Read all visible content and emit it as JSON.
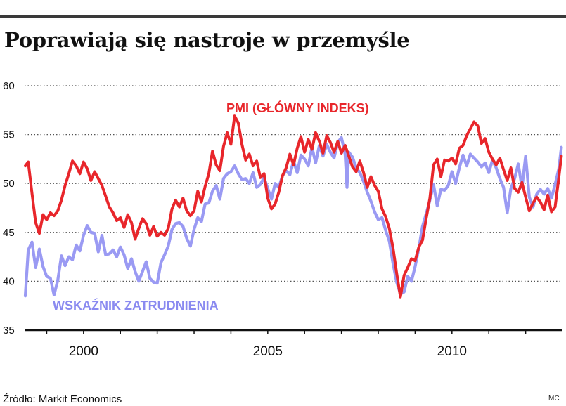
{
  "title": "Poprawiają się nastroje w przemyśle",
  "source": "Źródło: Markit Economics",
  "credit": "MC",
  "chart_data": {
    "type": "line",
    "title": "Poprawiają się nastroje w przemyśle",
    "xlabel": "",
    "ylabel": "",
    "xlim": [
      1998.4,
      2013.0
    ],
    "ylim": [
      35,
      60
    ],
    "yticks": [
      35,
      40,
      45,
      50,
      55,
      60
    ],
    "ytick_labels": [
      "35",
      "40",
      "45",
      "50",
      "55",
      "60"
    ],
    "xtick_years": [
      1999,
      2000,
      2001,
      2002,
      2003,
      2004,
      2005,
      2006,
      2007,
      2008,
      2009,
      2010,
      2011,
      2012
    ],
    "xtick_labels": [
      {
        "x": 2000,
        "label": "2000"
      },
      {
        "x": 2005,
        "label": "2005"
      },
      {
        "x": 2010,
        "label": "2010"
      }
    ],
    "grid": "horizontal-dotted",
    "series": [
      {
        "name": "PMI (GŁÓWNY INDEKS)",
        "color": "#e8262b",
        "points": [
          [
            1998.42,
            51.8
          ],
          [
            1998.5,
            52.2
          ],
          [
            1998.6,
            49.0
          ],
          [
            1998.7,
            46.0
          ],
          [
            1998.8,
            44.9
          ],
          [
            1998.9,
            46.8
          ],
          [
            1999.0,
            46.3
          ],
          [
            1999.1,
            47.0
          ],
          [
            1999.2,
            46.7
          ],
          [
            1999.3,
            47.2
          ],
          [
            1999.4,
            48.3
          ],
          [
            1999.5,
            49.8
          ],
          [
            1999.6,
            51.0
          ],
          [
            1999.7,
            52.3
          ],
          [
            1999.8,
            51.8
          ],
          [
            1999.9,
            51.0
          ],
          [
            2000.0,
            52.2
          ],
          [
            2000.1,
            51.5
          ],
          [
            2000.2,
            50.3
          ],
          [
            2000.3,
            51.2
          ],
          [
            2000.4,
            50.5
          ],
          [
            2000.5,
            49.8
          ],
          [
            2000.6,
            48.7
          ],
          [
            2000.7,
            47.6
          ],
          [
            2000.8,
            47.0
          ],
          [
            2000.9,
            46.2
          ],
          [
            2001.0,
            46.5
          ],
          [
            2001.1,
            45.5
          ],
          [
            2001.2,
            46.8
          ],
          [
            2001.3,
            46.0
          ],
          [
            2001.4,
            44.3
          ],
          [
            2001.5,
            45.4
          ],
          [
            2001.6,
            46.4
          ],
          [
            2001.7,
            45.9
          ],
          [
            2001.8,
            44.7
          ],
          [
            2001.9,
            45.6
          ],
          [
            2002.0,
            44.6
          ],
          [
            2002.1,
            45.0
          ],
          [
            2002.2,
            44.7
          ],
          [
            2002.3,
            45.4
          ],
          [
            2002.4,
            47.4
          ],
          [
            2002.5,
            48.3
          ],
          [
            2002.6,
            47.6
          ],
          [
            2002.7,
            48.5
          ],
          [
            2002.8,
            47.2
          ],
          [
            2002.9,
            46.7
          ],
          [
            2003.0,
            47.2
          ],
          [
            2003.1,
            49.2
          ],
          [
            2003.2,
            48.1
          ],
          [
            2003.3,
            49.7
          ],
          [
            2003.4,
            51.0
          ],
          [
            2003.5,
            53.3
          ],
          [
            2003.6,
            51.9
          ],
          [
            2003.7,
            51.3
          ],
          [
            2003.8,
            53.8
          ],
          [
            2003.9,
            55.2
          ],
          [
            2004.0,
            54.0
          ],
          [
            2004.1,
            56.9
          ],
          [
            2004.2,
            56.2
          ],
          [
            2004.3,
            54.0
          ],
          [
            2004.4,
            52.4
          ],
          [
            2004.5,
            53.0
          ],
          [
            2004.6,
            51.8
          ],
          [
            2004.7,
            52.3
          ],
          [
            2004.8,
            50.6
          ],
          [
            2004.9,
            51.0
          ],
          [
            2005.0,
            48.5
          ],
          [
            2005.1,
            47.4
          ],
          [
            2005.2,
            47.9
          ],
          [
            2005.3,
            49.1
          ],
          [
            2005.4,
            50.8
          ],
          [
            2005.5,
            51.6
          ],
          [
            2005.6,
            53.0
          ],
          [
            2005.7,
            51.9
          ],
          [
            2005.8,
            53.6
          ],
          [
            2005.9,
            54.8
          ],
          [
            2006.0,
            53.2
          ],
          [
            2006.1,
            54.5
          ],
          [
            2006.2,
            53.5
          ],
          [
            2006.3,
            55.2
          ],
          [
            2006.4,
            54.3
          ],
          [
            2006.5,
            53.1
          ],
          [
            2006.6,
            54.9
          ],
          [
            2006.7,
            54.2
          ],
          [
            2006.8,
            53.2
          ],
          [
            2006.9,
            54.3
          ],
          [
            2007.0,
            53.1
          ],
          [
            2007.1,
            53.9
          ],
          [
            2007.2,
            52.8
          ],
          [
            2007.3,
            51.7
          ],
          [
            2007.4,
            51.2
          ],
          [
            2007.5,
            52.3
          ],
          [
            2007.6,
            51.1
          ],
          [
            2007.7,
            49.6
          ],
          [
            2007.8,
            50.7
          ],
          [
            2007.9,
            49.8
          ],
          [
            2008.0,
            49.2
          ],
          [
            2008.1,
            47.4
          ],
          [
            2008.2,
            46.6
          ],
          [
            2008.3,
            45.4
          ],
          [
            2008.4,
            43.4
          ],
          [
            2008.5,
            40.8
          ],
          [
            2008.6,
            38.4
          ],
          [
            2008.7,
            40.6
          ],
          [
            2008.8,
            41.4
          ],
          [
            2008.9,
            42.3
          ],
          [
            2009.0,
            42.1
          ],
          [
            2009.1,
            43.5
          ],
          [
            2009.2,
            44.2
          ],
          [
            2009.3,
            46.4
          ],
          [
            2009.4,
            48.5
          ],
          [
            2009.5,
            51.9
          ],
          [
            2009.6,
            52.5
          ],
          [
            2009.7,
            50.7
          ],
          [
            2009.8,
            52.4
          ],
          [
            2009.9,
            52.3
          ],
          [
            2010.0,
            52.6
          ],
          [
            2010.1,
            52.0
          ],
          [
            2010.2,
            53.6
          ],
          [
            2010.3,
            53.9
          ],
          [
            2010.4,
            54.9
          ],
          [
            2010.5,
            55.6
          ],
          [
            2010.6,
            56.3
          ],
          [
            2010.7,
            55.9
          ],
          [
            2010.8,
            54.1
          ],
          [
            2010.9,
            54.6
          ],
          [
            2011.0,
            53.2
          ],
          [
            2011.1,
            52.5
          ],
          [
            2011.2,
            51.9
          ],
          [
            2011.3,
            52.6
          ],
          [
            2011.4,
            51.4
          ],
          [
            2011.5,
            50.3
          ],
          [
            2011.6,
            51.6
          ],
          [
            2011.7,
            49.5
          ],
          [
            2011.8,
            49.1
          ],
          [
            2011.9,
            50.1
          ],
          [
            2012.0,
            48.6
          ],
          [
            2012.1,
            47.2
          ],
          [
            2012.2,
            48.0
          ],
          [
            2012.3,
            48.6
          ],
          [
            2012.4,
            48.1
          ],
          [
            2012.5,
            47.3
          ],
          [
            2012.6,
            48.8
          ],
          [
            2012.7,
            47.1
          ],
          [
            2012.8,
            47.6
          ],
          [
            2012.9,
            50.6
          ],
          [
            2012.97,
            52.8
          ]
        ]
      },
      {
        "name": "WSKAŹNIK ZATRUDNIENIA",
        "color": "#9a9af3",
        "points": [
          [
            1998.42,
            38.5
          ],
          [
            1998.5,
            43.2
          ],
          [
            1998.6,
            44.0
          ],
          [
            1998.7,
            41.4
          ],
          [
            1998.8,
            43.3
          ],
          [
            1998.9,
            41.5
          ],
          [
            1999.0,
            40.5
          ],
          [
            1999.1,
            40.3
          ],
          [
            1999.2,
            38.6
          ],
          [
            1999.3,
            40.1
          ],
          [
            1999.4,
            42.6
          ],
          [
            1999.5,
            41.6
          ],
          [
            1999.6,
            42.5
          ],
          [
            1999.7,
            42.2
          ],
          [
            1999.8,
            43.7
          ],
          [
            1999.9,
            43.1
          ],
          [
            2000.0,
            44.7
          ],
          [
            2000.1,
            45.7
          ],
          [
            2000.2,
            45.0
          ],
          [
            2000.3,
            44.9
          ],
          [
            2000.4,
            43.0
          ],
          [
            2000.5,
            44.7
          ],
          [
            2000.6,
            42.7
          ],
          [
            2000.7,
            42.8
          ],
          [
            2000.8,
            43.2
          ],
          [
            2000.9,
            42.5
          ],
          [
            2001.0,
            43.5
          ],
          [
            2001.1,
            42.7
          ],
          [
            2001.2,
            41.3
          ],
          [
            2001.3,
            42.3
          ],
          [
            2001.4,
            41.0
          ],
          [
            2001.5,
            40.0
          ],
          [
            2001.6,
            41.0
          ],
          [
            2001.7,
            42.0
          ],
          [
            2001.8,
            40.3
          ],
          [
            2001.9,
            39.9
          ],
          [
            2002.0,
            39.8
          ],
          [
            2002.1,
            41.9
          ],
          [
            2002.2,
            42.7
          ],
          [
            2002.3,
            43.6
          ],
          [
            2002.4,
            45.3
          ],
          [
            2002.5,
            45.9
          ],
          [
            2002.6,
            46.0
          ],
          [
            2002.7,
            45.6
          ],
          [
            2002.8,
            44.4
          ],
          [
            2002.9,
            43.6
          ],
          [
            2003.0,
            45.3
          ],
          [
            2003.1,
            46.5
          ],
          [
            2003.2,
            46.1
          ],
          [
            2003.3,
            47.9
          ],
          [
            2003.4,
            48.0
          ],
          [
            2003.5,
            49.2
          ],
          [
            2003.6,
            49.8
          ],
          [
            2003.7,
            48.4
          ],
          [
            2003.8,
            50.5
          ],
          [
            2003.9,
            51.0
          ],
          [
            2004.0,
            51.2
          ],
          [
            2004.1,
            51.8
          ],
          [
            2004.2,
            51.0
          ],
          [
            2004.3,
            50.4
          ],
          [
            2004.4,
            50.5
          ],
          [
            2004.5,
            50.0
          ],
          [
            2004.6,
            51.1
          ],
          [
            2004.7,
            49.6
          ],
          [
            2004.8,
            49.9
          ],
          [
            2004.9,
            50.6
          ],
          [
            2005.0,
            49.5
          ],
          [
            2005.1,
            48.4
          ],
          [
            2005.2,
            50.0
          ],
          [
            2005.3,
            49.6
          ],
          [
            2005.4,
            50.8
          ],
          [
            2005.5,
            51.3
          ],
          [
            2005.6,
            50.9
          ],
          [
            2005.7,
            52.3
          ],
          [
            2005.8,
            51.1
          ],
          [
            2005.9,
            52.9
          ],
          [
            2006.0,
            52.5
          ],
          [
            2006.1,
            51.8
          ],
          [
            2006.2,
            53.7
          ],
          [
            2006.3,
            52.1
          ],
          [
            2006.4,
            53.9
          ],
          [
            2006.5,
            52.8
          ],
          [
            2006.6,
            54.0
          ],
          [
            2006.7,
            53.2
          ],
          [
            2006.8,
            52.6
          ],
          [
            2006.9,
            54.2
          ],
          [
            2007.0,
            54.7
          ],
          [
            2007.1,
            53.0
          ],
          [
            2007.15,
            49.6
          ],
          [
            2007.2,
            53.2
          ],
          [
            2007.3,
            52.7
          ],
          [
            2007.4,
            51.6
          ],
          [
            2007.5,
            51.1
          ],
          [
            2007.6,
            50.2
          ],
          [
            2007.7,
            49.1
          ],
          [
            2007.8,
            48.2
          ],
          [
            2007.9,
            47.1
          ],
          [
            2008.0,
            46.3
          ],
          [
            2008.1,
            46.5
          ],
          [
            2008.2,
            45.2
          ],
          [
            2008.3,
            44.1
          ],
          [
            2008.4,
            41.8
          ],
          [
            2008.5,
            39.9
          ],
          [
            2008.6,
            38.7
          ],
          [
            2008.7,
            38.9
          ],
          [
            2008.8,
            40.5
          ],
          [
            2008.9,
            40.0
          ],
          [
            2009.0,
            41.5
          ],
          [
            2009.1,
            43.4
          ],
          [
            2009.2,
            45.6
          ],
          [
            2009.3,
            46.9
          ],
          [
            2009.4,
            48.3
          ],
          [
            2009.5,
            49.9
          ],
          [
            2009.6,
            47.7
          ],
          [
            2009.7,
            49.4
          ],
          [
            2009.8,
            49.3
          ],
          [
            2009.9,
            49.8
          ],
          [
            2010.0,
            51.2
          ],
          [
            2010.1,
            50.0
          ],
          [
            2010.2,
            51.6
          ],
          [
            2010.3,
            52.9
          ],
          [
            2010.4,
            51.8
          ],
          [
            2010.5,
            53.0
          ],
          [
            2010.6,
            52.6
          ],
          [
            2010.7,
            52.2
          ],
          [
            2010.8,
            51.7
          ],
          [
            2010.9,
            52.1
          ],
          [
            2011.0,
            51.1
          ],
          [
            2011.1,
            52.4
          ],
          [
            2011.2,
            51.6
          ],
          [
            2011.3,
            50.5
          ],
          [
            2011.4,
            49.6
          ],
          [
            2011.5,
            47.0
          ],
          [
            2011.6,
            49.5
          ],
          [
            2011.7,
            50.5
          ],
          [
            2011.8,
            52.0
          ],
          [
            2011.9,
            49.6
          ],
          [
            2012.0,
            52.8
          ],
          [
            2012.1,
            48.6
          ],
          [
            2012.2,
            47.6
          ],
          [
            2012.3,
            48.9
          ],
          [
            2012.4,
            49.4
          ],
          [
            2012.5,
            48.9
          ],
          [
            2012.6,
            49.5
          ],
          [
            2012.7,
            48.5
          ],
          [
            2012.8,
            49.9
          ],
          [
            2012.9,
            51.5
          ],
          [
            2012.97,
            53.7
          ]
        ]
      }
    ]
  }
}
